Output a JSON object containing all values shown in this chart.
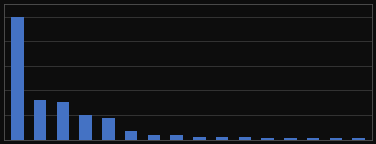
{
  "values": [
    100,
    32,
    31,
    20,
    18,
    7,
    4,
    4,
    2,
    2,
    2,
    1,
    1,
    1,
    1,
    1
  ],
  "bar_color": "#4472c4",
  "background_color": "#0d0d0d",
  "plot_bg_color": "#0d0d0d",
  "grid_color": "#3a3a3a",
  "spine_color": "#555555",
  "ylim": [
    0,
    110
  ],
  "bar_width": 0.55,
  "n_gridlines": 5
}
